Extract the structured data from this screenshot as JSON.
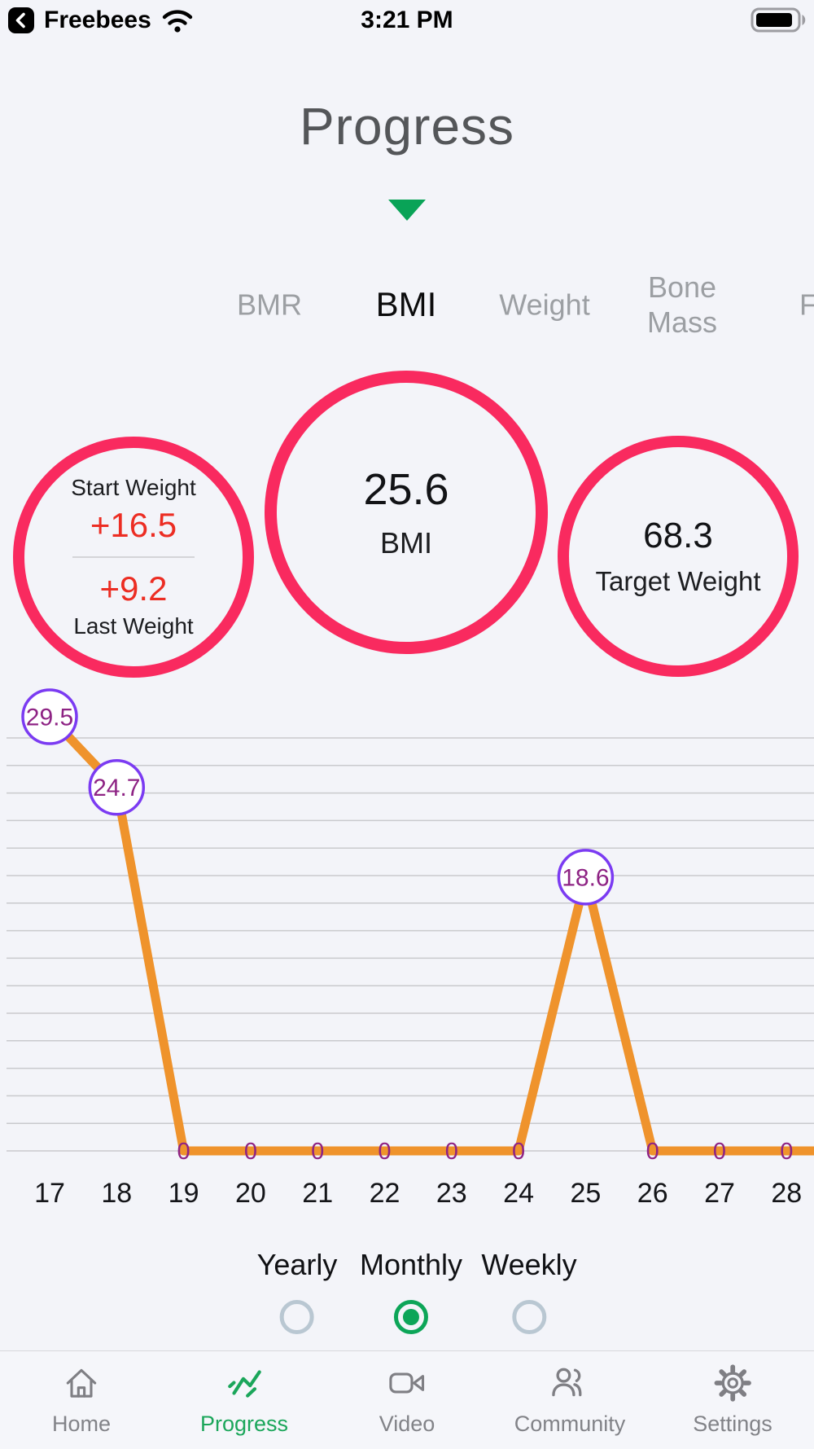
{
  "status_bar": {
    "carrier": "Freebees",
    "time": "3:21 PM"
  },
  "header": {
    "title": "Progress"
  },
  "metric_tabs": {
    "items": [
      {
        "label": "BMR",
        "selected": false
      },
      {
        "label": "BMI",
        "selected": true
      },
      {
        "label": "Weight",
        "selected": false
      },
      {
        "label": "Bone Mass",
        "selected": false
      },
      {
        "label": "Fat",
        "selected": false
      }
    ]
  },
  "summary_circles": {
    "left": {
      "top_label": "Start Weight",
      "top_value": "+16.5",
      "bottom_value": "+9.2",
      "bottom_label": "Last Weight"
    },
    "center": {
      "value": "25.6",
      "label": "BMI"
    },
    "right": {
      "value": "68.3",
      "label": "Target Weight"
    }
  },
  "chart_data": {
    "type": "line",
    "title": "",
    "xlabel": "",
    "ylabel": "",
    "x": [
      17,
      18,
      19,
      20,
      21,
      22,
      23,
      24,
      25,
      26,
      27,
      28
    ],
    "values": [
      29.5,
      24.7,
      0,
      0,
      0,
      0,
      0,
      0,
      18.6,
      0,
      0,
      0
    ],
    "point_labels": [
      "29.5",
      "24.7",
      "0",
      "0",
      "0",
      "0",
      "0",
      "0",
      "18.6",
      "0",
      "0",
      "0"
    ],
    "bubble_points": [
      17,
      18,
      25
    ],
    "ylim": [
      0,
      30
    ],
    "grid": true,
    "gridline_count": 16,
    "legend": "none",
    "extends_right": true,
    "line_color": "#EF932C",
    "marker_border_color": "#7B3BF2",
    "marker_text_color": "#8E2384",
    "grid_color": "#C9CACD",
    "x_label_color": "#141519"
  },
  "period_selector": {
    "options": [
      {
        "label": "Yearly",
        "selected": false
      },
      {
        "label": "Monthly",
        "selected": true
      },
      {
        "label": "Weekly",
        "selected": false
      }
    ]
  },
  "tab_bar": {
    "items": [
      {
        "label": "Home",
        "selected": false
      },
      {
        "label": "Progress",
        "selected": true
      },
      {
        "label": "Video",
        "selected": false
      },
      {
        "label": "Community",
        "selected": false
      },
      {
        "label": "Settings",
        "selected": false
      }
    ]
  },
  "colors": {
    "background": "#F3F4F9",
    "pink": "#F92A5F",
    "orange": "#EF932C",
    "purple_border": "#7B3BF2",
    "purple_text": "#8E2384",
    "green": "#0CA558",
    "red": "#EC2D23"
  }
}
